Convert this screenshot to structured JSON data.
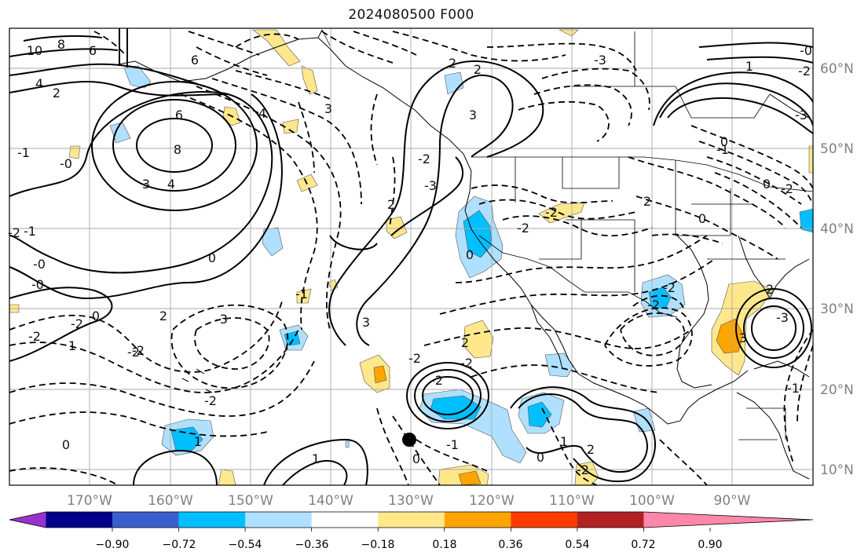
{
  "title": "2024080500 F000",
  "lat_labels": [
    "60°N",
    "50°N",
    "40°N",
    "30°N",
    "20°N",
    "10°N"
  ],
  "lon_labels": [
    "170°W",
    "160°W",
    "150°W",
    "140°W",
    "130°W",
    "120°W",
    "110°W",
    "100°W",
    "90°W"
  ],
  "colorbar": {
    "colors": [
      "#9932cc",
      "#00008b",
      "#3a5fcd",
      "#00bfff",
      "#b0e0ff",
      "#ffffff",
      "#ffe88c",
      "#ffa500",
      "#ff3c00",
      "#b22222",
      "#ff88aa"
    ],
    "tick_labels": [
      "−0.90",
      "−0.72",
      "−0.54",
      "−0.36",
      "−0.18",
      "0.18",
      "0.36",
      "0.54",
      "0.72",
      "0.90"
    ]
  },
  "contour_labels": [
    "10",
    "8",
    "6",
    "6",
    "4",
    "2",
    "-1",
    "-0",
    "6",
    "8",
    "3",
    "4",
    "4",
    "3",
    "-2",
    "-1",
    "-0",
    "-0",
    "0",
    "2",
    "-2",
    "1",
    "-2",
    "0",
    "-3",
    "-2",
    "1",
    "-2",
    "-2",
    "1",
    "0",
    "-3",
    "3",
    "-2",
    "-2",
    "-2",
    "2",
    "3",
    "2",
    "-2",
    "0",
    "0",
    "-2",
    "-2",
    "-3",
    "2",
    "0",
    "-1",
    "0",
    "-2",
    "-1",
    "-1",
    "0",
    "1",
    "2",
    "-2",
    "-2",
    "-3",
    "1",
    "2",
    "3",
    "-3",
    "0",
    "-0",
    "-2",
    "-1",
    "2",
    "2",
    "-2"
  ],
  "marker": "storm-center"
}
